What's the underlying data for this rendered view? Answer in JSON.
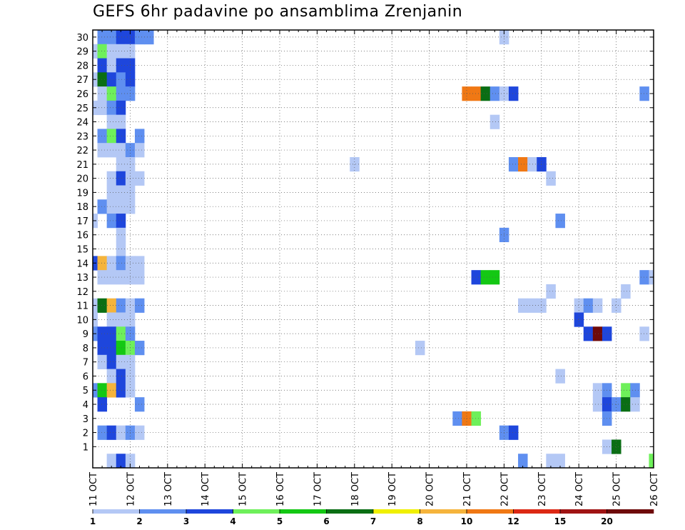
{
  "chart_data": {
    "type": "heatmap",
    "title": "GEFS 6hr padavine po ansamblima Zrenjanin",
    "xlabel": "",
    "ylabel": "",
    "x_tick_labels": [
      "11 OCT",
      "12 OCT",
      "13 OCT",
      "14 OCT",
      "15 OCT",
      "16 OCT",
      "17 OCT",
      "18 OCT",
      "19 OCT",
      "20 OCT",
      "21 OCT",
      "22 OCT",
      "23 OCT",
      "24 OCT",
      "25 OCT",
      "26 OCT"
    ],
    "y_tick_labels": [
      "1",
      "2",
      "3",
      "4",
      "5",
      "6",
      "7",
      "8",
      "9",
      "10",
      "11",
      "12",
      "13",
      "14",
      "15",
      "16",
      "17",
      "18",
      "19",
      "20",
      "21",
      "22",
      "23",
      "24",
      "25",
      "26",
      "27",
      "28",
      "29",
      "30"
    ],
    "ylim": [
      -0.5,
      30.5
    ],
    "time_steps": 61,
    "time_step_hours": 6,
    "grid": true,
    "legend": {
      "placement": "bottom",
      "thresholds": [
        "1",
        "2",
        "3",
        "4",
        "5",
        "6",
        "7",
        "8",
        "10",
        "12",
        "15",
        "20"
      ],
      "colors": [
        "#b4c8f5",
        "#5f8ff0",
        "#1e46dc",
        "#6ef05a",
        "#14c814",
        "#0a6e14",
        "#f0f000",
        "#f5b43c",
        "#f07814",
        "#dc2814",
        "#a01414",
        "#6e0a0a"
      ]
    },
    "cells": [
      {
        "m": 30,
        "t": [
          1,
          2,
          3,
          4
        ],
        "c": [
          1,
          1,
          2,
          2
        ]
      },
      {
        "m": 30,
        "t": [
          5,
          6
        ],
        "c": [
          1,
          1
        ]
      },
      {
        "m": 30,
        "t": [
          44
        ],
        "c": [
          0
        ]
      },
      {
        "m": 29,
        "t": [
          0,
          1,
          2,
          3,
          4
        ],
        "c": [
          0,
          3,
          0,
          0,
          0
        ]
      },
      {
        "m": 28,
        "t": [
          1,
          2,
          3,
          4
        ],
        "c": [
          2,
          0,
          2,
          2
        ]
      },
      {
        "m": 27,
        "t": [
          0,
          1,
          2,
          3,
          4
        ],
        "c": [
          0,
          5,
          2,
          1,
          2
        ]
      },
      {
        "m": 26,
        "t": [
          1,
          2,
          3,
          4
        ],
        "c": [
          0,
          3,
          1,
          1
        ]
      },
      {
        "m": 26,
        "t": [
          40,
          41,
          42,
          43,
          44,
          45
        ],
        "c": [
          8,
          8,
          5,
          1,
          0,
          2
        ]
      },
      {
        "m": 26,
        "t": [
          59
        ],
        "c": [
          1
        ]
      },
      {
        "m": 25,
        "t": [
          0,
          1,
          2,
          3
        ],
        "c": [
          0,
          0,
          1,
          2
        ]
      },
      {
        "m": 24,
        "t": [
          2,
          3
        ],
        "c": [
          0,
          0
        ]
      },
      {
        "m": 24,
        "t": [
          43
        ],
        "c": [
          0
        ]
      },
      {
        "m": 23,
        "t": [
          1,
          2,
          3,
          5
        ],
        "c": [
          1,
          3,
          2,
          1
        ]
      },
      {
        "m": 22,
        "t": [
          1,
          2,
          3,
          4,
          5
        ],
        "c": [
          0,
          0,
          0,
          1,
          0
        ]
      },
      {
        "m": 21,
        "t": [
          3,
          4
        ],
        "c": [
          0,
          0
        ]
      },
      {
        "m": 21,
        "t": [
          28
        ],
        "c": [
          0
        ]
      },
      {
        "m": 21,
        "t": [
          45,
          46,
          47,
          48
        ],
        "c": [
          1,
          8,
          0,
          2
        ]
      },
      {
        "m": 20,
        "t": [
          2,
          3,
          4,
          5
        ],
        "c": [
          0,
          2,
          0,
          0
        ]
      },
      {
        "m": 20,
        "t": [
          49
        ],
        "c": [
          0
        ]
      },
      {
        "m": 19,
        "t": [
          2,
          3,
          4
        ],
        "c": [
          0,
          0,
          0
        ]
      },
      {
        "m": 18,
        "t": [
          1,
          2,
          3,
          4
        ],
        "c": [
          1,
          0,
          0,
          0
        ]
      },
      {
        "m": 17,
        "t": [
          0,
          2,
          3
        ],
        "c": [
          0,
          1,
          2
        ]
      },
      {
        "m": 17,
        "t": [
          50
        ],
        "c": [
          1
        ]
      },
      {
        "m": 16,
        "t": [
          3
        ],
        "c": [
          0
        ]
      },
      {
        "m": 16,
        "t": [
          44
        ],
        "c": [
          1
        ]
      },
      {
        "m": 15,
        "t": [
          3
        ],
        "c": [
          0
        ]
      },
      {
        "m": 14,
        "t": [
          0,
          1,
          2,
          3,
          4,
          5
        ],
        "c": [
          2,
          7,
          0,
          1,
          0,
          0
        ]
      },
      {
        "m": 13,
        "t": [
          1,
          2,
          3,
          4,
          5
        ],
        "c": [
          0,
          0,
          0,
          0,
          0
        ]
      },
      {
        "m": 13,
        "t": [
          41,
          42,
          43
        ],
        "c": [
          2,
          4,
          4
        ]
      },
      {
        "m": 13,
        "t": [
          59,
          60
        ],
        "c": [
          1,
          0
        ]
      },
      {
        "m": 12,
        "t": [
          49
        ],
        "c": [
          0
        ]
      },
      {
        "m": 12,
        "t": [
          57
        ],
        "c": [
          0
        ]
      },
      {
        "m": 11,
        "t": [
          0,
          1,
          2,
          3,
          4,
          5
        ],
        "c": [
          0,
          5,
          7,
          1,
          0,
          1
        ]
      },
      {
        "m": 11,
        "t": [
          46,
          47,
          48
        ],
        "c": [
          0,
          0,
          0
        ]
      },
      {
        "m": 11,
        "t": [
          52,
          53,
          54
        ],
        "c": [
          0,
          1,
          0
        ]
      },
      {
        "m": 11,
        "t": [
          56
        ],
        "c": [
          0
        ]
      },
      {
        "m": 10,
        "t": [
          0,
          2,
          3,
          4
        ],
        "c": [
          0,
          0,
          0,
          0
        ]
      },
      {
        "m": 10,
        "t": [
          52
        ],
        "c": [
          2
        ]
      },
      {
        "m": 9,
        "t": [
          0,
          1,
          2,
          3,
          4
        ],
        "c": [
          1,
          2,
          2,
          3,
          1
        ]
      },
      {
        "m": 9,
        "t": [
          53,
          54,
          55
        ],
        "c": [
          2,
          11,
          2
        ]
      },
      {
        "m": 9,
        "t": [
          59
        ],
        "c": [
          0
        ]
      },
      {
        "m": 8,
        "t": [
          1,
          2,
          3,
          4,
          5
        ],
        "c": [
          2,
          2,
          4,
          3,
          1
        ]
      },
      {
        "m": 8,
        "t": [
          35
        ],
        "c": [
          0
        ]
      },
      {
        "m": 7,
        "t": [
          1,
          2,
          3,
          4
        ],
        "c": [
          0,
          2,
          0,
          0
        ]
      },
      {
        "m": 6,
        "t": [
          2,
          3,
          4
        ],
        "c": [
          0,
          2,
          0
        ]
      },
      {
        "m": 6,
        "t": [
          50
        ],
        "c": [
          0
        ]
      },
      {
        "m": 5,
        "t": [
          0,
          1,
          2,
          3,
          4
        ],
        "c": [
          1,
          4,
          7,
          2,
          0
        ]
      },
      {
        "m": 5,
        "t": [
          54,
          55,
          57,
          58
        ],
        "c": [
          0,
          1,
          3,
          1
        ]
      },
      {
        "m": 4,
        "t": [
          1
        ],
        "c": [
          2
        ]
      },
      {
        "m": 4,
        "t": [
          5
        ],
        "c": [
          1
        ]
      },
      {
        "m": 4,
        "t": [
          54,
          55,
          56,
          57,
          58
        ],
        "c": [
          0,
          2,
          1,
          5,
          0
        ]
      },
      {
        "m": 3,
        "t": [
          39,
          40,
          41
        ],
        "c": [
          1,
          8,
          3
        ]
      },
      {
        "m": 3,
        "t": [
          55
        ],
        "c": [
          1
        ]
      },
      {
        "m": 2,
        "t": [
          1,
          2,
          3,
          4,
          5
        ],
        "c": [
          1,
          2,
          0,
          1,
          0
        ]
      },
      {
        "m": 2,
        "t": [
          44,
          45
        ],
        "c": [
          1,
          2
        ]
      },
      {
        "m": 1,
        "t": [
          55,
          56
        ],
        "c": [
          0,
          5
        ]
      },
      {
        "m": 0,
        "t": [
          2,
          3,
          4
        ],
        "c": [
          0,
          2,
          0
        ]
      },
      {
        "m": 0,
        "t": [
          46
        ],
        "c": [
          1
        ]
      },
      {
        "m": 0,
        "t": [
          49,
          50
        ],
        "c": [
          0,
          0
        ]
      },
      {
        "m": 0,
        "t": [
          60
        ],
        "c": [
          3
        ]
      }
    ]
  }
}
